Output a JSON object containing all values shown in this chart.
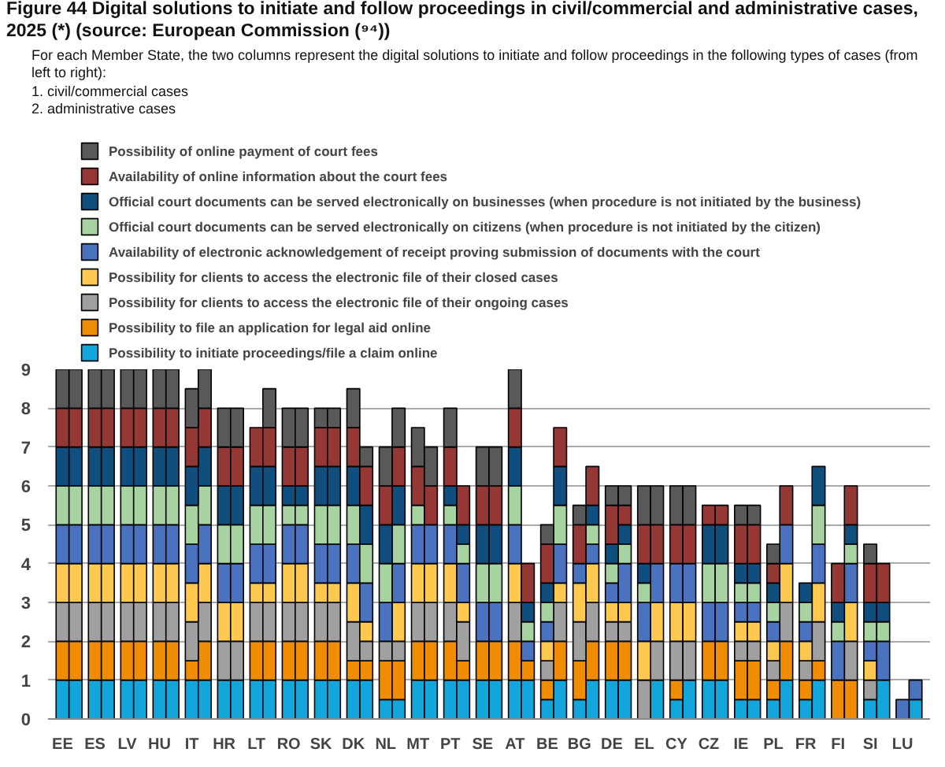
{
  "chart_data": {
    "type": "bar",
    "stacked": true,
    "title": "Figure 44 Digital solutions to initiate and follow proceedings in civil/commercial and administrative cases, 2025 (*) (source: European Commission (⁹⁴))",
    "subtitle": "For each Member State, the two columns represent the digital solutions to initiate and follow proceedings in the following types of cases (from left to right):\n1. civil/commercial cases\n2. administrative cases",
    "categories": [
      "EE",
      null,
      "ES",
      null,
      "LV",
      null,
      "HU",
      null,
      "IT",
      null,
      "HR",
      null,
      "LT",
      null,
      "RO",
      null,
      "SK",
      null,
      "DK",
      null,
      "NL",
      null,
      "MT",
      null,
      "PT",
      null,
      "SE",
      null,
      "AT",
      null,
      "BE",
      null,
      "BG",
      null,
      "DE",
      null,
      "EL",
      null,
      "CY",
      null,
      "CZ",
      null,
      "IE",
      null,
      "PL",
      null,
      "FR",
      null,
      "FI",
      null,
      "SI",
      null,
      "LU",
      null
    ],
    "series": [
      {
        "name": "Possibility to initiate proceedings/file a claim online",
        "color": "#12a6dd",
        "values": [
          1,
          1,
          1,
          1,
          1,
          1,
          1,
          1,
          1,
          1,
          1,
          1,
          1,
          1,
          1,
          1,
          1,
          1,
          1,
          1,
          0.5,
          0.5,
          1,
          1,
          1,
          1,
          1,
          1,
          1,
          1,
          0.5,
          1,
          0.5,
          1,
          1,
          1,
          0,
          1,
          0.5,
          1,
          1,
          1,
          0.5,
          0.5,
          0.5,
          1,
          0.5,
          1,
          0,
          0,
          0.5,
          1,
          0,
          0.5
        ]
      },
      {
        "name": "Possibility to file an application for legal aid online",
        "color": "#f08c00",
        "values": [
          1,
          1,
          1,
          1,
          1,
          1,
          1,
          1,
          0.5,
          1,
          0,
          0,
          1,
          1,
          1,
          1,
          1,
          1,
          0.5,
          0.5,
          1,
          1,
          1,
          1,
          1,
          0.5,
          1,
          1,
          1,
          0.5,
          0.5,
          1,
          1,
          1,
          1,
          1,
          0,
          0,
          0.5,
          0,
          1,
          1,
          1,
          1,
          0.5,
          1,
          0.5,
          0.5,
          1,
          1,
          0,
          0,
          0,
          0
        ]
      },
      {
        "name": "Possibility for clients to access the electronic file of their ongoing cases",
        "color": "#a0a0a0",
        "values": [
          1,
          1,
          1,
          1,
          1,
          1,
          1,
          1,
          1,
          1,
          1,
          1,
          1,
          1,
          1,
          1,
          1,
          1,
          1,
          0.5,
          0.5,
          0.5,
          1,
          1,
          1,
          1,
          0,
          0,
          1,
          0,
          0.5,
          1,
          1,
          1,
          0.5,
          0.5,
          1,
          1,
          1,
          1,
          0,
          0,
          0.5,
          0.5,
          0.5,
          1,
          0.5,
          1,
          0,
          1,
          0.5,
          0,
          0,
          0
        ]
      },
      {
        "name": "Possibility for clients to access the electronic file of their closed cases",
        "color": "#ffc94f",
        "values": [
          1,
          1,
          1,
          1,
          1,
          1,
          1,
          1,
          1,
          1,
          1,
          1,
          0.5,
          0.5,
          1,
          1,
          0.5,
          0.5,
          1,
          0.5,
          0,
          1,
          1,
          1,
          1,
          0.5,
          0,
          0,
          1,
          0,
          0.5,
          0.5,
          1,
          1,
          0.5,
          0.5,
          1,
          1,
          1,
          1,
          0,
          0,
          0.5,
          0.5,
          0.5,
          1,
          0.5,
          1,
          0,
          1,
          0.5,
          0,
          0,
          0
        ]
      },
      {
        "name": "Availability of electronic acknowledgement of receipt proving submission of documents with the court",
        "color": "#4a72bf",
        "values": [
          1,
          1,
          1,
          1,
          1,
          1,
          1,
          1,
          1,
          1,
          1,
          1,
          1,
          1,
          1,
          1,
          1,
          1,
          1,
          1,
          1,
          1,
          1,
          1,
          1,
          1,
          1,
          1,
          1,
          0.5,
          0.5,
          1,
          0.5,
          0.5,
          0.5,
          1,
          1,
          1,
          1,
          1,
          1,
          1,
          0.5,
          0.5,
          0.5,
          1,
          0.5,
          1,
          1,
          1,
          0.5,
          1,
          0.5,
          0.5
        ]
      },
      {
        "name": "Official court documents can be served electronically on citizens (when procedure is not initiated by the citizen)",
        "color": "#a6d3a0",
        "values": [
          1,
          1,
          1,
          1,
          1,
          1,
          1,
          1,
          1,
          1,
          1,
          1,
          1,
          1,
          0.5,
          0.5,
          1,
          1,
          1,
          1,
          1,
          1,
          0.5,
          0,
          0.5,
          0.5,
          1,
          1,
          1,
          0.5,
          0.5,
          1,
          0,
          0.5,
          0.5,
          0.5,
          0.5,
          0,
          0,
          0,
          1,
          1,
          0.5,
          0.5,
          0.5,
          0,
          0.5,
          1,
          0.5,
          0.5,
          0.5,
          0.5,
          0,
          0
        ]
      },
      {
        "name": "Official court documents can be served electronically on businesses (when procedure is not initiated by the business)",
        "color": "#104e7e",
        "values": [
          1,
          1,
          1,
          1,
          1,
          1,
          1,
          1,
          1,
          1,
          1,
          1,
          1,
          1,
          0.5,
          0.5,
          1,
          1,
          1,
          1,
          1,
          1,
          0,
          0,
          0.5,
          0.5,
          1,
          1,
          1,
          0.5,
          0.5,
          1,
          0,
          0.5,
          0.5,
          0.5,
          0.5,
          0,
          0,
          0,
          1,
          1,
          0.5,
          0.5,
          0.5,
          0,
          0.5,
          1,
          0.5,
          0.5,
          0.5,
          0.5,
          0,
          0
        ]
      },
      {
        "name": "Availability of online information about the court fees",
        "color": "#953735",
        "values": [
          1,
          1,
          1,
          1,
          1,
          1,
          1,
          1,
          1,
          1,
          1,
          1,
          1,
          1,
          1,
          1,
          1,
          1,
          1,
          1,
          1,
          1,
          1,
          1,
          1,
          1,
          1,
          1,
          1,
          1,
          1,
          1,
          1,
          1,
          1,
          0.5,
          1,
          1,
          1,
          1,
          0.5,
          0.5,
          1,
          1,
          0.5,
          1,
          0,
          0,
          1,
          1,
          1,
          1,
          0,
          0
        ]
      },
      {
        "name": "Possibility of online payment of court fees",
        "color": "#595959",
        "values": [
          1,
          1,
          1,
          1,
          1,
          1,
          1,
          1,
          1,
          1,
          1,
          1,
          0,
          1,
          1,
          1,
          0.5,
          0.5,
          1,
          0.5,
          1,
          1,
          1,
          1,
          1,
          0,
          1,
          1,
          1,
          0,
          0.5,
          0,
          0.5,
          0,
          0.5,
          0.5,
          1,
          1,
          1,
          1,
          0,
          0,
          0.5,
          0.5,
          0.5,
          0,
          0,
          0,
          0,
          0,
          0.5,
          0,
          0,
          0
        ]
      }
    ],
    "ylim": [
      0,
      9
    ],
    "yticks": [
      0,
      1,
      2,
      3,
      4,
      5,
      6,
      7,
      8,
      9
    ],
    "grid": "y",
    "legend": "top"
  }
}
